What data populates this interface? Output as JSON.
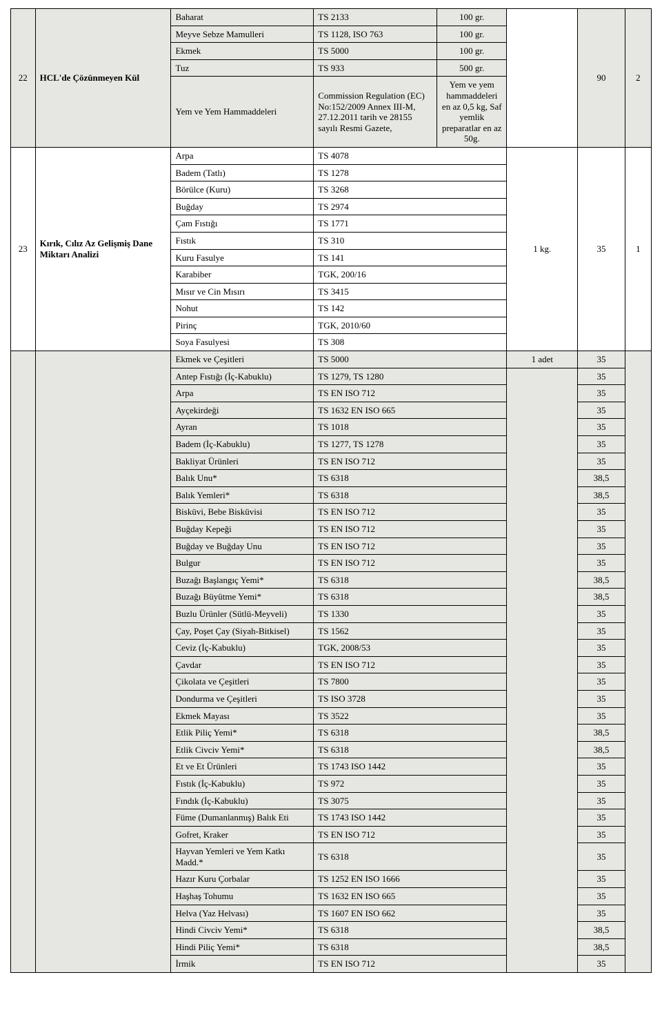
{
  "block22": {
    "index": "22",
    "name": "HCL'de Çözünmeyen Kül",
    "rows": [
      {
        "item": "Baharat",
        "std": "TS 2133",
        "qty": "100 gr."
      },
      {
        "item": "Meyve Sebze Mamulleri",
        "std": "TS 1128, ISO 763",
        "qty": "100 gr."
      },
      {
        "item": "Ekmek",
        "std": "TS 5000",
        "qty": "100 gr."
      },
      {
        "item": "Tuz",
        "std": "TS 933",
        "qty": "500 gr."
      }
    ],
    "last": {
      "item": "Yem ve Yem Hammaddeleri",
      "std": "Commission Regulation (EC) No:152/2009 Annex III-M, 27.12.2011 tarih ve 28155 sayılı Resmi Gazete,",
      "qty": "Yem ve yem hammaddeleri en az 0,5 kg, Saf yemlik preparatlar en az 50g."
    },
    "val": "90",
    "ext": "2"
  },
  "block23": {
    "index": "23",
    "name": "Kırık, Cılız Az Gelişmiş Dane Miktarı Analizi",
    "rows": [
      {
        "item": "Arpa",
        "std": "TS 4078"
      },
      {
        "item": "Badem (Tatlı)",
        "std": "TS 1278"
      },
      {
        "item": "Börülce (Kuru)",
        "std": "TS 3268"
      },
      {
        "item": "Buğday",
        "std": "TS 2974"
      },
      {
        "item": "Çam Fıstığı",
        "std": "TS 1771"
      },
      {
        "item": "Fıstık",
        "std": "TS 310"
      },
      {
        "item": "Kuru Fasulye",
        "std": "TS 141"
      },
      {
        "item": "Karabiber",
        "std": "TGK, 200/16"
      },
      {
        "item": "Mısır ve Cin Mısırı",
        "std": "TS 3415"
      },
      {
        "item": "Nohut",
        "std": "TS 142"
      },
      {
        "item": "Pirinç",
        "std": "TGK, 2010/60"
      },
      {
        "item": "Soya Fasulyesi",
        "std": "TS 308"
      }
    ],
    "qty": "1 kg.",
    "val": "35",
    "ext": "1"
  },
  "block24": {
    "firstRow": {
      "item": "Ekmek ve Çeşitleri",
      "std": "TS 5000",
      "qty": "1 adet",
      "val": "35"
    },
    "rows": [
      {
        "item": "Antep Fıstığı (İç-Kabuklu)",
        "std": "TS 1279, TS 1280",
        "val": "35"
      },
      {
        "item": "Arpa",
        "std": "TS EN ISO 712",
        "val": "35"
      },
      {
        "item": "Ayçekirdeği",
        "std": "TS 1632 EN ISO 665",
        "val": "35"
      },
      {
        "item": "Ayran",
        "std": "TS 1018",
        "val": "35"
      },
      {
        "item": "Badem (İç-Kabuklu)",
        "std": "TS 1277, TS 1278",
        "val": "35"
      },
      {
        "item": "Bakliyat Ürünleri",
        "std": "TS EN ISO 712",
        "val": "35"
      },
      {
        "item": "Balık Unu*",
        "std": "TS 6318",
        "val": "38,5"
      },
      {
        "item": "Balık Yemleri*",
        "std": "TS 6318",
        "val": "38,5"
      },
      {
        "item": "Bisküvi, Bebe Bisküvisi",
        "std": "TS EN ISO 712",
        "val": "35"
      },
      {
        "item": "Buğday Kepeği",
        "std": "TS EN ISO 712",
        "val": "35"
      },
      {
        "item": "Buğday ve Buğday Unu",
        "std": "TS EN ISO 712",
        "val": "35"
      },
      {
        "item": "Bulgur",
        "std": "TS EN ISO 712",
        "val": "35"
      },
      {
        "item": "Buzağı Başlangıç Yemi*",
        "std": "TS 6318",
        "val": "38,5"
      },
      {
        "item": "Buzağı Büyütme Yemi*",
        "std": "TS 6318",
        "val": "38,5"
      },
      {
        "item": "Buzlu Ürünler (Sütlü-Meyveli)",
        "std": "TS 1330",
        "val": "35"
      },
      {
        "item": "Çay, Poşet Çay (Siyah-Bitkisel)",
        "std": "TS 1562",
        "val": "35"
      },
      {
        "item": "Ceviz (İç-Kabuklu)",
        "std": "TGK, 2008/53",
        "val": "35"
      },
      {
        "item": "Çavdar",
        "std": "TS EN ISO 712",
        "val": "35"
      },
      {
        "item": "Çikolata ve Çeşitleri",
        "std": "TS 7800",
        "val": "35"
      },
      {
        "item": "Dondurma ve Çeşitleri",
        "std": "TS ISO 3728",
        "val": "35"
      },
      {
        "item": "Ekmek Mayası",
        "std": "TS 3522",
        "val": "35"
      },
      {
        "item": "Etlik Piliç Yemi*",
        "std": "TS 6318",
        "val": "38,5"
      },
      {
        "item": "Etlik Civciv Yemi*",
        "std": "TS 6318",
        "val": "38,5"
      },
      {
        "item": "Et ve Et Ürünleri",
        "std": "TS 1743 ISO 1442",
        "val": "35"
      },
      {
        "item": "Fıstık (İç-Kabuklu)",
        "std": "TS 972",
        "val": "35"
      },
      {
        "item": "Fındık (İç-Kabuklu)",
        "std": "TS 3075",
        "val": "35"
      },
      {
        "item": "Füme (Dumanlanmış) Balık Eti",
        "std": "TS 1743 ISO 1442",
        "val": "35"
      },
      {
        "item": "Gofret, Kraker",
        "std": "TS EN ISO 712",
        "val": "35"
      },
      {
        "item": "Hayvan Yemleri ve Yem Katkı Madd.*",
        "std": "TS 6318",
        "val": "35"
      },
      {
        "item": "Hazır Kuru Çorbalar",
        "std": "TS 1252 EN ISO 1666",
        "val": "35"
      },
      {
        "item": "Haşhaş Tohumu",
        "std": "TS 1632 EN ISO 665",
        "val": "35"
      },
      {
        "item": "Helva (Yaz Helvası)",
        "std": "TS 1607 EN ISO 662",
        "val": "35"
      },
      {
        "item": "Hindi Civciv Yemi*",
        "std": "TS 6318",
        "val": "38,5"
      },
      {
        "item": "Hindi Piliç Yemi*",
        "std": "TS 6318",
        "val": "38,5"
      },
      {
        "item": "İrmik",
        "std": "TS EN ISO 712",
        "val": "35"
      }
    ]
  }
}
